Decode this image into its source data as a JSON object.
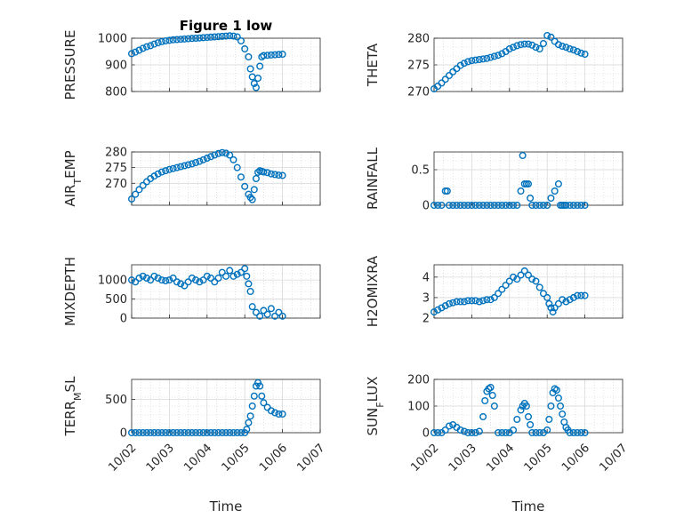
{
  "colors": {
    "marker": "#0072BD",
    "axis": "#262626",
    "grid": "#d9d9d9",
    "minor_grid": "#cfcfcf"
  },
  "chart_data": [
    {
      "id": "pressure",
      "type": "scatter",
      "title": "Figure 1 low",
      "ylabel": "PRESSURE",
      "ylim": [
        800,
        1000
      ],
      "yticks": [
        "800",
        "900",
        "1000"
      ],
      "xticks": [],
      "x": [
        0,
        0.1,
        0.2,
        0.3,
        0.4,
        0.5,
        0.6,
        0.7,
        0.8,
        0.9,
        1.0,
        1.1,
        1.2,
        1.3,
        1.4,
        1.5,
        1.6,
        1.7,
        1.8,
        1.9,
        2.0,
        2.1,
        2.2,
        2.3,
        2.4,
        2.5,
        2.6,
        2.7,
        2.8,
        2.9,
        3.0,
        3.1,
        3.15,
        3.2,
        3.25,
        3.3,
        3.35,
        3.4,
        3.45,
        3.5,
        3.6,
        3.7,
        3.8,
        3.9,
        4.0
      ],
      "y": [
        942,
        948,
        955,
        962,
        968,
        972,
        978,
        983,
        987,
        990,
        992,
        994,
        995,
        996,
        997,
        998,
        999,
        1000,
        1001,
        1002,
        1003,
        1004,
        1005,
        1006,
        1007,
        1008,
        1009,
        1008,
        1005,
        990,
        960,
        930,
        885,
        855,
        830,
        815,
        850,
        895,
        930,
        935,
        936,
        937,
        938,
        939,
        940
      ]
    },
    {
      "id": "theta",
      "type": "scatter",
      "title": "",
      "ylabel": "THETA",
      "ylim": [
        270,
        280
      ],
      "yticks": [
        "270",
        "275",
        "280"
      ],
      "xticks": [],
      "x": [
        0,
        0.1,
        0.2,
        0.3,
        0.4,
        0.5,
        0.6,
        0.7,
        0.8,
        0.9,
        1.0,
        1.1,
        1.2,
        1.3,
        1.4,
        1.5,
        1.6,
        1.7,
        1.8,
        1.9,
        2.0,
        2.1,
        2.2,
        2.3,
        2.4,
        2.5,
        2.6,
        2.7,
        2.8,
        2.9,
        3.0,
        3.1,
        3.2,
        3.3,
        3.4,
        3.5,
        3.6,
        3.7,
        3.8,
        3.9,
        4.0
      ],
      "y": [
        270.5,
        271.0,
        271.6,
        272.3,
        273.0,
        273.7,
        274.3,
        274.9,
        275.3,
        275.6,
        275.8,
        275.9,
        276.0,
        276.1,
        276.2,
        276.4,
        276.6,
        276.8,
        277.1,
        277.5,
        278.0,
        278.3,
        278.6,
        278.8,
        278.9,
        278.9,
        278.7,
        278.3,
        278.0,
        279.0,
        280.5,
        280.2,
        279.4,
        278.8,
        278.5,
        278.3,
        278.0,
        277.8,
        277.5,
        277.2,
        277.0
      ]
    },
    {
      "id": "air_temp",
      "type": "scatter",
      "title": "",
      "ylabel_main": "AIR",
      "ylabel_sub": "T",
      "ylabel_rest": "EMP",
      "ylim": [
        263,
        280
      ],
      "yticks": [
        "270",
        "275",
        "280"
      ],
      "xticks": [],
      "x": [
        0,
        0.1,
        0.2,
        0.3,
        0.4,
        0.5,
        0.6,
        0.7,
        0.8,
        0.9,
        1.0,
        1.1,
        1.2,
        1.3,
        1.4,
        1.5,
        1.6,
        1.7,
        1.8,
        1.9,
        2.0,
        2.1,
        2.2,
        2.3,
        2.4,
        2.5,
        2.6,
        2.7,
        2.8,
        2.9,
        3.0,
        3.1,
        3.15,
        3.2,
        3.25,
        3.3,
        3.35,
        3.4,
        3.45,
        3.5,
        3.6,
        3.7,
        3.8,
        3.9,
        4.0
      ],
      "y": [
        265.0,
        266.5,
        268.0,
        269.3,
        270.5,
        271.5,
        272.3,
        273.0,
        273.6,
        274.0,
        274.4,
        274.7,
        275.0,
        275.3,
        275.6,
        275.9,
        276.2,
        276.6,
        277.0,
        277.5,
        278.0,
        278.5,
        279.0,
        279.5,
        279.8,
        279.6,
        279.0,
        277.5,
        275.0,
        272.0,
        269.0,
        266.5,
        265.5,
        264.8,
        268.0,
        271.5,
        273.5,
        274.0,
        273.8,
        273.6,
        273.4,
        273.0,
        272.8,
        272.6,
        272.5
      ]
    },
    {
      "id": "rainfall",
      "type": "scatter",
      "title": "",
      "ylabel": "RAINFALL",
      "ylim": [
        0,
        0.75
      ],
      "yticks": [
        "0",
        "0.5"
      ],
      "xticks": [],
      "x": [
        0,
        0.1,
        0.2,
        0.3,
        0.35,
        0.4,
        0.5,
        0.6,
        0.7,
        0.8,
        0.9,
        1.0,
        1.1,
        1.2,
        1.3,
        1.4,
        1.5,
        1.6,
        1.7,
        1.8,
        1.9,
        2.0,
        2.1,
        2.2,
        2.3,
        2.35,
        2.4,
        2.45,
        2.5,
        2.55,
        2.6,
        2.7,
        2.8,
        2.9,
        3.0,
        3.1,
        3.2,
        3.3,
        3.35,
        3.4,
        3.45,
        3.5,
        3.6,
        3.7,
        3.8,
        3.9,
        4.0
      ],
      "y": [
        0,
        0,
        0,
        0.2,
        0.2,
        0,
        0,
        0,
        0,
        0,
        0,
        0,
        0,
        0,
        0,
        0,
        0,
        0,
        0,
        0,
        0,
        0,
        0,
        0,
        0.2,
        0.7,
        0.3,
        0.3,
        0.3,
        0.1,
        0,
        0,
        0,
        0,
        0,
        0.1,
        0.2,
        0.3,
        0,
        0,
        0,
        0,
        0,
        0,
        0,
        0,
        0
      ]
    },
    {
      "id": "mixdepth",
      "type": "scatter",
      "title": "",
      "ylabel": "MIXDEPTH",
      "ylim": [
        0,
        1400
      ],
      "yticks": [
        "0",
        "500",
        "1000"
      ],
      "xticks": [],
      "x": [
        0,
        0.1,
        0.2,
        0.3,
        0.4,
        0.5,
        0.6,
        0.7,
        0.8,
        0.9,
        1.0,
        1.1,
        1.2,
        1.3,
        1.4,
        1.5,
        1.6,
        1.7,
        1.8,
        1.9,
        2.0,
        2.1,
        2.2,
        2.3,
        2.4,
        2.5,
        2.6,
        2.7,
        2.8,
        2.9,
        3.0,
        3.05,
        3.1,
        3.15,
        3.2,
        3.3,
        3.4,
        3.5,
        3.6,
        3.7,
        3.8,
        3.9,
        4.0
      ],
      "y": [
        1000,
        950,
        1050,
        1100,
        1050,
        1000,
        1100,
        1050,
        1000,
        980,
        1000,
        1050,
        950,
        900,
        850,
        950,
        1050,
        1000,
        950,
        1000,
        1100,
        1050,
        950,
        1050,
        1200,
        1100,
        1250,
        1100,
        1150,
        1200,
        1300,
        1100,
        900,
        700,
        300,
        150,
        50,
        200,
        100,
        250,
        50,
        150,
        50
      ]
    },
    {
      "id": "h2omixra",
      "type": "scatter",
      "title": "",
      "ylabel": "H2OMIXRA",
      "ylim": [
        2,
        4.6
      ],
      "yticks": [
        "2",
        "3",
        "4"
      ],
      "xticks": [],
      "x": [
        0,
        0.1,
        0.2,
        0.3,
        0.4,
        0.5,
        0.6,
        0.7,
        0.8,
        0.9,
        1.0,
        1.1,
        1.2,
        1.3,
        1.4,
        1.5,
        1.6,
        1.7,
        1.8,
        1.9,
        2.0,
        2.1,
        2.2,
        2.3,
        2.4,
        2.5,
        2.6,
        2.7,
        2.8,
        2.9,
        3.0,
        3.05,
        3.1,
        3.15,
        3.2,
        3.3,
        3.4,
        3.5,
        3.6,
        3.7,
        3.8,
        3.9,
        4.0
      ],
      "y": [
        2.3,
        2.4,
        2.5,
        2.6,
        2.7,
        2.75,
        2.8,
        2.8,
        2.8,
        2.85,
        2.85,
        2.85,
        2.8,
        2.85,
        2.9,
        2.9,
        3.0,
        3.2,
        3.4,
        3.6,
        3.8,
        4.0,
        3.9,
        4.1,
        4.3,
        4.1,
        3.9,
        3.8,
        3.5,
        3.2,
        3.0,
        2.7,
        2.5,
        2.3,
        2.5,
        2.7,
        2.9,
        2.8,
        2.9,
        3.0,
        3.1,
        3.1,
        3.1
      ]
    },
    {
      "id": "terr_msl",
      "type": "scatter",
      "title": "",
      "ylabel_main": "TERR",
      "ylabel_sub": "M",
      "ylabel_rest": "SL",
      "ylim": [
        0,
        800
      ],
      "yticks": [
        "0",
        "500"
      ],
      "xticks": [
        "10/02",
        "10/03",
        "10/04",
        "10/05",
        "10/06",
        "10/07"
      ],
      "xlabel": "Time",
      "x": [
        0,
        0.1,
        0.2,
        0.3,
        0.4,
        0.5,
        0.6,
        0.7,
        0.8,
        0.9,
        1.0,
        1.1,
        1.2,
        1.3,
        1.4,
        1.5,
        1.6,
        1.7,
        1.8,
        1.9,
        2.0,
        2.1,
        2.2,
        2.3,
        2.4,
        2.5,
        2.6,
        2.7,
        2.8,
        2.9,
        3.0,
        3.05,
        3.1,
        3.15,
        3.2,
        3.25,
        3.3,
        3.35,
        3.4,
        3.45,
        3.5,
        3.6,
        3.7,
        3.8,
        3.9,
        4.0
      ],
      "y": [
        0,
        0,
        0,
        0,
        0,
        0,
        0,
        0,
        0,
        0,
        0,
        0,
        0,
        0,
        0,
        0,
        0,
        0,
        0,
        0,
        0,
        0,
        0,
        0,
        0,
        0,
        0,
        0,
        0,
        0,
        0,
        50,
        150,
        250,
        400,
        550,
        700,
        750,
        700,
        550,
        450,
        380,
        330,
        300,
        280,
        280
      ]
    },
    {
      "id": "sun_flux",
      "type": "scatter",
      "title": "",
      "ylabel_main": "SUN",
      "ylabel_sub": "F",
      "ylabel_rest": "LUX",
      "ylim": [
        0,
        200
      ],
      "yticks": [
        "0",
        "100",
        "200"
      ],
      "xticks": [
        "10/02",
        "10/03",
        "10/04",
        "10/05",
        "10/06",
        "10/07"
      ],
      "xlabel": "Time",
      "x": [
        0,
        0.1,
        0.2,
        0.3,
        0.4,
        0.5,
        0.6,
        0.7,
        0.8,
        0.9,
        1.0,
        1.1,
        1.2,
        1.3,
        1.35,
        1.4,
        1.45,
        1.5,
        1.55,
        1.6,
        1.7,
        1.8,
        1.9,
        2.0,
        2.1,
        2.2,
        2.3,
        2.35,
        2.4,
        2.45,
        2.5,
        2.55,
        2.6,
        2.7,
        2.8,
        2.9,
        3.0,
        3.05,
        3.1,
        3.15,
        3.2,
        3.25,
        3.3,
        3.35,
        3.4,
        3.45,
        3.5,
        3.55,
        3.6,
        3.7,
        3.8,
        3.9,
        4.0
      ],
      "y": [
        0,
        0,
        0,
        10,
        25,
        30,
        20,
        10,
        5,
        0,
        0,
        0,
        5,
        60,
        120,
        155,
        165,
        170,
        140,
        100,
        0,
        0,
        0,
        0,
        10,
        50,
        85,
        100,
        110,
        100,
        60,
        30,
        0,
        0,
        0,
        0,
        10,
        50,
        100,
        150,
        165,
        160,
        130,
        100,
        70,
        40,
        20,
        10,
        0,
        0,
        0,
        0,
        0
      ]
    }
  ]
}
